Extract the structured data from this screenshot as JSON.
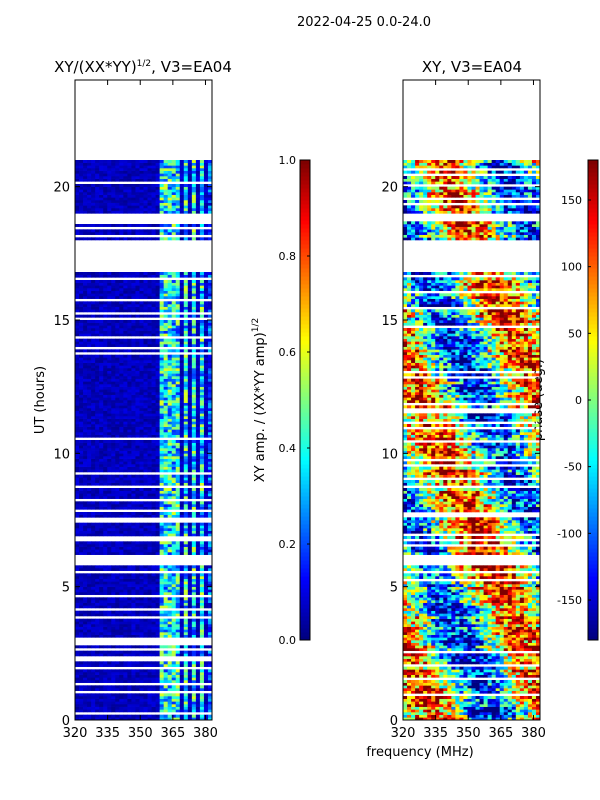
{
  "suptitle": "2022-04-25 0.0-24.0",
  "shared_xlabel": "frequency (MHz)",
  "colors": {
    "jet": [
      "#00007f",
      "#0000ff",
      "#007fff",
      "#00ffff",
      "#7fff7f",
      "#ffff00",
      "#ff7f00",
      "#ff0000",
      "#7f0000"
    ],
    "gap": "#ffffff"
  },
  "chart_data": [
    {
      "type": "heatmap",
      "title_main": "XY/(XX*YY)",
      "title_sup": "1/2",
      "title_tail": ", V3=EA04",
      "xlabel": "",
      "ylabel": "UT (hours)",
      "xlim": [
        320,
        383
      ],
      "ylim": [
        0,
        24
      ],
      "xticks": [
        "320",
        "335",
        "350",
        "365",
        "380"
      ],
      "xtick_values": [
        320,
        335,
        350,
        365,
        380
      ],
      "yticks": [
        "0",
        "5",
        "10",
        "15",
        "20"
      ],
      "ytick_values": [
        0,
        5,
        10,
        15,
        20
      ],
      "data_coverage_hours": [
        0,
        21
      ],
      "gap_hours": [
        [
          21,
          24
        ],
        [
          18.6,
          18.9
        ],
        [
          16.7,
          17.9
        ],
        [
          5.7,
          6.1
        ]
      ],
      "bright_band_mhz": [
        [
          358,
          368
        ],
        [
          370,
          372
        ],
        [
          374,
          376
        ],
        [
          378,
          380
        ]
      ],
      "colorbar": {
        "label_main": "XY amp. / (XX*YY amp)",
        "label_sup": "1/2",
        "range": [
          0.0,
          1.0
        ],
        "ticks": [
          "0.0",
          "0.2",
          "0.4",
          "0.6",
          "0.8",
          "1.0"
        ],
        "tick_values": [
          0,
          0.2,
          0.4,
          0.6,
          0.8,
          1.0
        ]
      }
    },
    {
      "type": "heatmap",
      "title": "XY, V3=EA04",
      "xlabel": "",
      "ylabel": "",
      "xlim": [
        320,
        383
      ],
      "ylim": [
        0,
        24
      ],
      "xticks": [
        "320",
        "335",
        "350",
        "365",
        "380"
      ],
      "xtick_values": [
        320,
        335,
        350,
        365,
        380
      ],
      "yticks": [
        "0",
        "5",
        "10",
        "15",
        "20"
      ],
      "ytick_values": [
        0,
        5,
        10,
        15,
        20
      ],
      "data_coverage_hours": [
        0,
        21
      ],
      "gap_hours": [
        [
          21,
          24
        ],
        [
          18.6,
          18.9
        ],
        [
          16.7,
          17.9
        ],
        [
          5.7,
          6.1
        ]
      ],
      "colorbar": {
        "label": "phase (deg.)",
        "range": [
          -180,
          180
        ],
        "ticks": [
          "-150",
          "-100",
          "-50",
          "0",
          "50",
          "100",
          "150"
        ],
        "tick_values": [
          -150,
          -100,
          -50,
          0,
          50,
          100,
          150
        ]
      }
    }
  ]
}
